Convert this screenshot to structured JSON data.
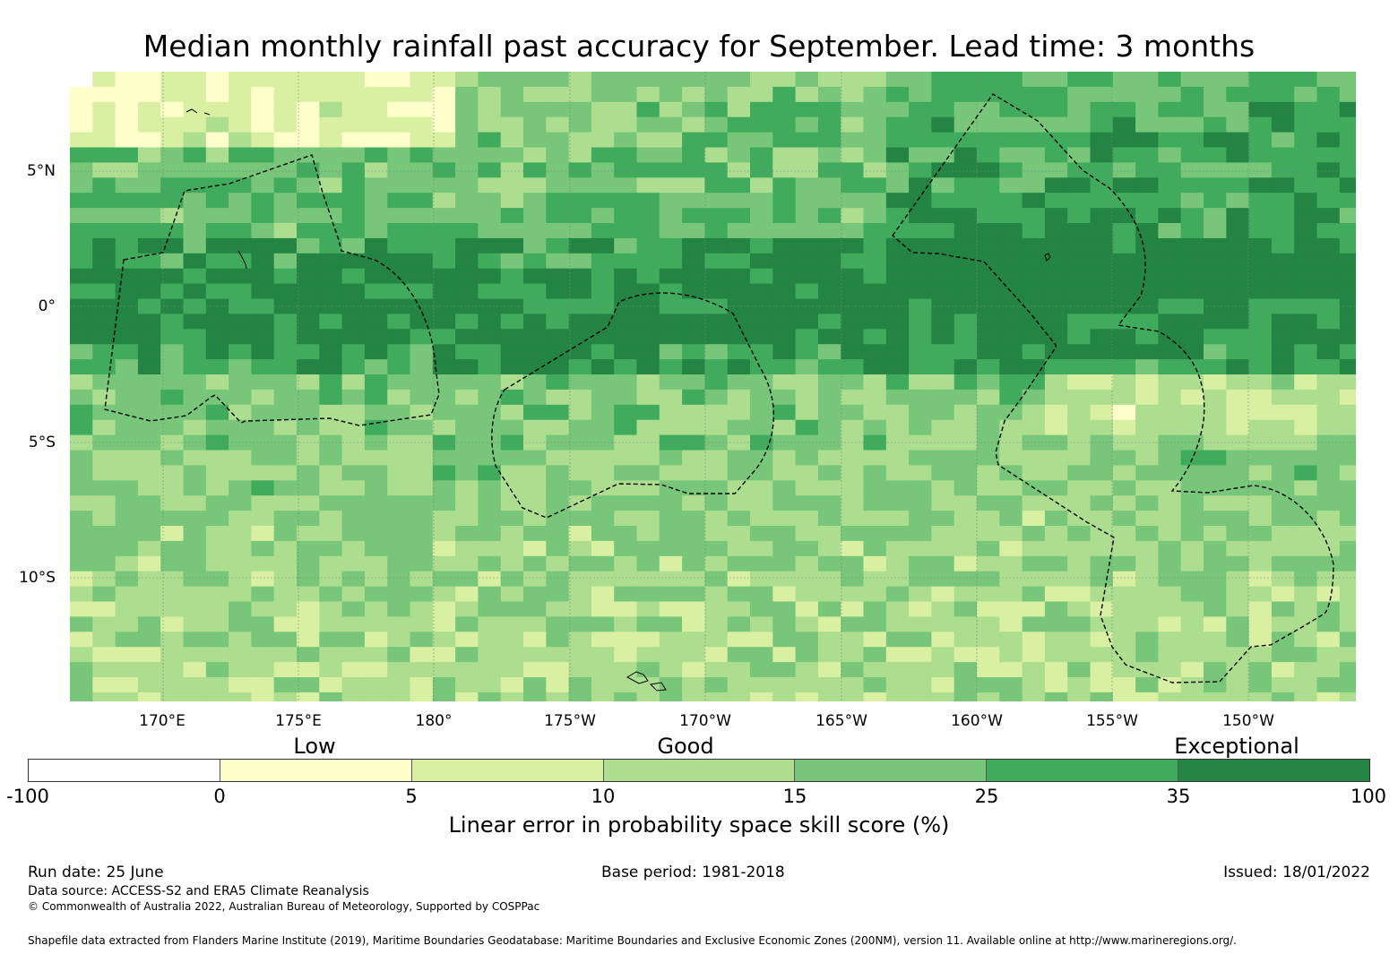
{
  "title": "Median monthly rainfall past accuracy for September. Lead time: 3 months",
  "map": {
    "lat_labels": [
      "5°N",
      "0°",
      "5°S",
      "10°S"
    ],
    "lon_labels": [
      "170°E",
      "175°E",
      "180°",
      "175°W",
      "170°W",
      "165°W",
      "160°W",
      "155°W",
      "150°W"
    ]
  },
  "legend": {
    "categories": [
      "Low",
      "Good",
      "Exceptional"
    ],
    "ticks": [
      "-100",
      "0",
      "5",
      "10",
      "15",
      "25",
      "35",
      "100"
    ],
    "colors": [
      "#ffffff",
      "#ffffcc",
      "#d9f0a3",
      "#addd8e",
      "#78c679",
      "#41ab5d",
      "#238443"
    ],
    "label": "Linear error in probability space skill score (%)"
  },
  "footer": {
    "run_date": "Run date: 25 June",
    "base_period": "Base period: 1981-2018",
    "issued": "Issued: 18/01/2022",
    "data_source": "Data source: ACCESS-S2 and ERA5 Climate Reanalysis",
    "copyright": "© Commonwealth of Australia 2022, Australian Bureau of Meteorology, Supported by COSPPac",
    "shapefile": "Shapefile data extracted from Flanders Marine Institute (2019), Maritime Boundaries Geodatabase: Maritime Boundaries and Exclusive Economic Zones (200NM), version 11. Available online at http://www.marineregions.org/."
  }
}
